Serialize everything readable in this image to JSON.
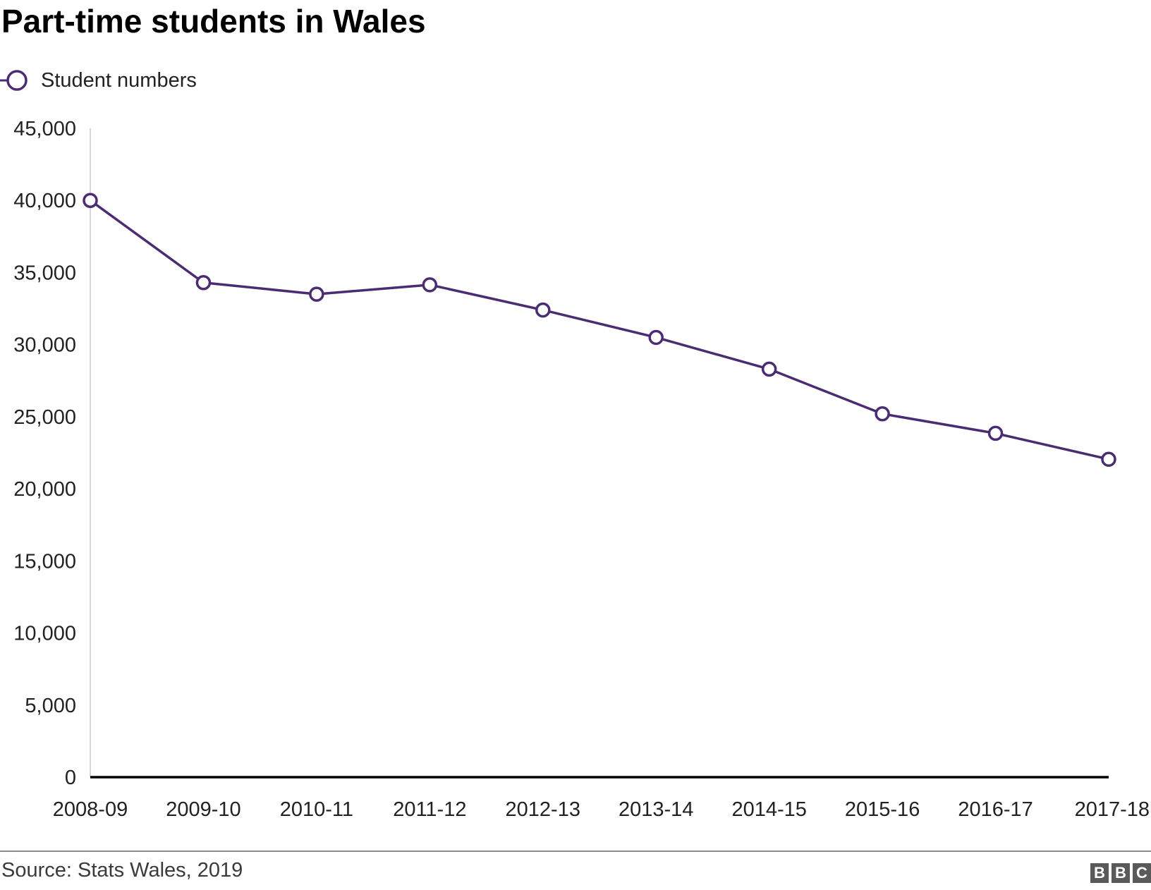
{
  "header": {
    "title": "Part-time students in Wales"
  },
  "legend": {
    "label": "Student numbers"
  },
  "footer": {
    "source": "Source: Stats Wales, 2019",
    "logo_letters": [
      "B",
      "B",
      "C"
    ]
  },
  "colors": {
    "series": "#4b2c73",
    "axis": "#000000",
    "axis_left": "#cccccc",
    "text": "#222222"
  },
  "chart_data": {
    "type": "line",
    "categories": [
      "2008-09",
      "2009-10",
      "2010-11",
      "2011-12",
      "2012-13",
      "2013-14",
      "2014-15",
      "2015-16",
      "2016-17",
      "2017-18"
    ],
    "series": [
      {
        "name": "Student numbers",
        "values": [
          40000,
          34300,
          33500,
          34150,
          32400,
          30500,
          28300,
          25200,
          23850,
          22050
        ]
      }
    ],
    "title": "Part-time students in Wales",
    "xlabel": "",
    "ylabel": "",
    "ylim": [
      0,
      45000
    ],
    "yticks": [
      0,
      5000,
      10000,
      15000,
      20000,
      25000,
      30000,
      35000,
      40000,
      45000
    ],
    "ytick_labels": [
      "0",
      "5,000",
      "10,000",
      "15,000",
      "20,000",
      "25,000",
      "30,000",
      "35,000",
      "40,000",
      "45,000"
    ],
    "grid": false,
    "legend_position": "top-left"
  }
}
